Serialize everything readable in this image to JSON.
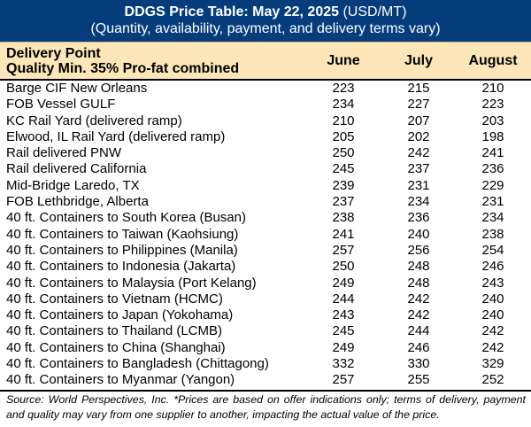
{
  "title": {
    "bold": "DDGS Price Table: May 22, 2025",
    "unit": "(USD/MT)",
    "subtitle": "(Quantity, availability, payment, and delivery terms vary)"
  },
  "header": {
    "col1_line1": "Delivery Point",
    "col1_line2": "Quality Min. 35% Pro-fat combined",
    "months": [
      "June",
      "July",
      "August"
    ]
  },
  "rows": [
    {
      "point": "Barge CIF New Orleans",
      "v": [
        "223",
        "215",
        "210"
      ]
    },
    {
      "point": "FOB Vessel GULF",
      "v": [
        "234",
        "227",
        "223"
      ]
    },
    {
      "point": "KC Rail Yard (delivered ramp)",
      "v": [
        "210",
        "207",
        "203"
      ]
    },
    {
      "point": "Elwood, IL Rail Yard (delivered ramp)",
      "v": [
        "205",
        "202",
        "198"
      ]
    },
    {
      "point": "Rail delivered PNW",
      "v": [
        "250",
        "242",
        "241"
      ]
    },
    {
      "point": "Rail delivered California",
      "v": [
        "245",
        "237",
        "236"
      ]
    },
    {
      "point": "Mid-Bridge Laredo, TX",
      "v": [
        "239",
        "231",
        "229"
      ]
    },
    {
      "point": "FOB Lethbridge, Alberta",
      "v": [
        "237",
        "234",
        "231"
      ]
    },
    {
      "point": "40 ft. Containers to South Korea (Busan)",
      "v": [
        "238",
        "236",
        "234"
      ]
    },
    {
      "point": "40 ft. Containers to Taiwan (Kaohsiung)",
      "v": [
        "241",
        "240",
        "238"
      ]
    },
    {
      "point": "40 ft. Containers to Philippines (Manila)",
      "v": [
        "257",
        "256",
        "254"
      ]
    },
    {
      "point": "40 ft. Containers to Indonesia (Jakarta)",
      "v": [
        "250",
        "248",
        "246"
      ]
    },
    {
      "point": "40 ft. Containers to Malaysia (Port Kelang)",
      "v": [
        "249",
        "248",
        "243"
      ]
    },
    {
      "point": "40 ft. Containers to Vietnam (HCMC)",
      "v": [
        "244",
        "242",
        "240"
      ]
    },
    {
      "point": "40 ft. Containers to Japan (Yokohama)",
      "v": [
        "243",
        "242",
        "240"
      ]
    },
    {
      "point": "40 ft. Containers to Thailand (LCMB)",
      "v": [
        "245",
        "244",
        "242"
      ]
    },
    {
      "point": "40 ft. Containers to China (Shanghai)",
      "v": [
        "249",
        "246",
        "242"
      ]
    },
    {
      "point": "40 ft. Containers to Bangladesh (Chittagong)",
      "v": [
        "332",
        "330",
        "329"
      ]
    },
    {
      "point": "40 ft. Containers to Myanmar (Yangon)",
      "v": [
        "257",
        "255",
        "252"
      ]
    }
  ],
  "source": "Source: World Perspectives, Inc. *Prices are based on offer indications only; terms of delivery, payment and quality may vary from one supplier to another, impacting the actual value of the price."
}
